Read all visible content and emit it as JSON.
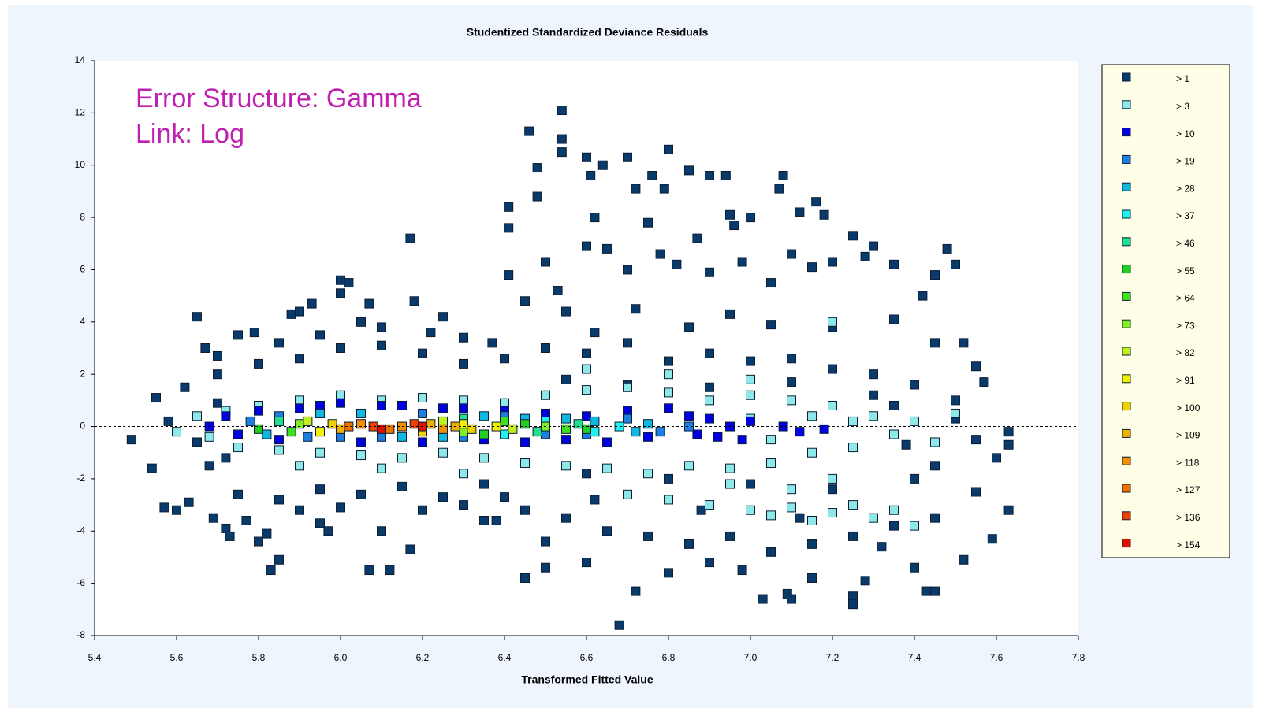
{
  "chart_data": {
    "type": "scatter",
    "title": "Studentized Standardized Deviance Residuals",
    "x_label": "Transformed Fitted Value",
    "annotations": [
      "Error Structure: Gamma",
      "Link: Log"
    ],
    "annotation_color": "#c020b0",
    "xlim": [
      5.4,
      7.8
    ],
    "ylim": [
      -8,
      14
    ],
    "xticks": [
      5.4,
      5.6,
      5.8,
      {
        "value": 6,
        "label": "6.0"
      },
      6.2,
      6.4,
      6.6,
      6.8,
      {
        "value": 7,
        "label": "7.0"
      },
      7.2,
      7.4,
      7.6,
      7.8
    ],
    "yticks": [
      -8,
      -6,
      -4,
      -2,
      0,
      2,
      4,
      6,
      8,
      10,
      12,
      14
    ],
    "hline": 0,
    "legend": "right",
    "series": [
      {
        "name": "> 1",
        "color": "#0a3a6a",
        "x": [
          5.49,
          5.54,
          5.55,
          5.57,
          5.6,
          5.63,
          5.65,
          5.67,
          5.69,
          5.7,
          5.72,
          5.73,
          5.75,
          5.77,
          5.79,
          5.8,
          5.82,
          5.83,
          5.85,
          5.88,
          5.9,
          5.93,
          5.95,
          5.97,
          6.0,
          6.02,
          6.0,
          6.05,
          6.07,
          6.1,
          6.07,
          6.12,
          6.17,
          6.17,
          6.18,
          6.25,
          6.35,
          6.38,
          6.41,
          6.41,
          6.41,
          6.46,
          6.48,
          6.48,
          6.54,
          6.54,
          6.54,
          6.6,
          6.61,
          6.64,
          6.62,
          6.7,
          6.72,
          6.76,
          6.8,
          6.79,
          6.85,
          6.9,
          6.94,
          6.95,
          6.96,
          7.0,
          7.08,
          7.07,
          7.12,
          7.16,
          7.18,
          7.25,
          7.3,
          7.48,
          7.5,
          7.45,
          7.55,
          7.57,
          7.6,
          7.63,
          7.63,
          7.63,
          7.59,
          6.68,
          6.72,
          7.03,
          7.09,
          7.1,
          7.25,
          7.25,
          7.43,
          7.45,
          6.5,
          6.45,
          6.6,
          6.8,
          6.9,
          6.98,
          7.15,
          7.28,
          7.4,
          7.52,
          6.5,
          6.53,
          6.6,
          6.65,
          6.7,
          6.75,
          6.78,
          6.82,
          6.87,
          6.9,
          6.98,
          7.05,
          7.1,
          7.15,
          7.2,
          7.28,
          7.35,
          7.42,
          6.45,
          6.55,
          6.62,
          6.72,
          6.85,
          6.95,
          7.05,
          7.2,
          7.35,
          7.45,
          7.52,
          5.62,
          5.68,
          5.7,
          5.75,
          5.8,
          5.85,
          5.9,
          5.95,
          6.0,
          6.05,
          6.1,
          6.15,
          6.2,
          6.25,
          6.3,
          6.35,
          6.4,
          6.45,
          6.5,
          6.55,
          6.6,
          6.65,
          6.7,
          6.75,
          6.8,
          6.85,
          6.9,
          6.95,
          7.0,
          7.05,
          7.1,
          7.15,
          7.2,
          7.25,
          7.3,
          7.35,
          7.4,
          7.45,
          7.5,
          7.55,
          7.55,
          7.5,
          7.45,
          5.58,
          5.65,
          5.7,
          5.72,
          6.55,
          6.6,
          6.7,
          6.8,
          6.9,
          7.0,
          7.1,
          7.2,
          7.3,
          7.4,
          7.35,
          7.38,
          6.62,
          6.88,
          7.12,
          7.32,
          6.5,
          6.4,
          6.3,
          6.2,
          6.0,
          5.9,
          5.85,
          5.95,
          6.1,
          6.22,
          6.3,
          6.37
        ],
        "y": [
          -0.5,
          -1.6,
          1.1,
          -3.1,
          -3.2,
          -2.9,
          4.2,
          3,
          -3.5,
          2.7,
          -3.9,
          -4.2,
          3.5,
          -3.6,
          3.6,
          -4.4,
          -4.1,
          -5.5,
          -5.1,
          4.3,
          4.4,
          4.7,
          -3.7,
          -4,
          5.6,
          5.5,
          5.1,
          4,
          4.7,
          -4,
          -5.5,
          -5.5,
          -4.7,
          7.2,
          4.8,
          4.2,
          -3.6,
          -3.6,
          8.4,
          7.6,
          5.8,
          11.3,
          9.9,
          8.8,
          12.1,
          11,
          10.5,
          10.3,
          9.6,
          10,
          8,
          10.3,
          9.1,
          9.6,
          10.6,
          9.1,
          9.8,
          9.6,
          9.6,
          8.1,
          7.7,
          8,
          9.6,
          9.1,
          8.2,
          8.6,
          8.1,
          7.3,
          6.9,
          6.8,
          6.2,
          5.8,
          2.3,
          1.7,
          -1.2,
          -0.2,
          -0.7,
          -3.2,
          -4.3,
          -7.6,
          -6.3,
          -6.6,
          -6.4,
          -6.6,
          -6.5,
          -6.8,
          -6.3,
          -6.3,
          -5.4,
          -5.8,
          -5.2,
          -5.6,
          -5.2,
          -5.5,
          -5.8,
          -5.9,
          -5.4,
          -5.1,
          6.3,
          5.2,
          6.9,
          6.8,
          6,
          7.8,
          6.6,
          6.2,
          7.2,
          5.9,
          6.3,
          5.5,
          6.6,
          6.1,
          6.3,
          6.5,
          6.2,
          5,
          4.8,
          4.4,
          3.6,
          4.5,
          3.8,
          4.3,
          3.9,
          3.8,
          4.1,
          3.2,
          3.2,
          1.5,
          -1.5,
          2,
          -2.6,
          2.4,
          -2.8,
          2.6,
          -2.4,
          3,
          -2.6,
          3.1,
          -2.3,
          2.8,
          -2.7,
          2.4,
          -2.2,
          2.6,
          -3.2,
          3,
          -3.5,
          2.8,
          -4,
          3.2,
          -4.2,
          2.5,
          -4.5,
          2.8,
          -4.2,
          2.5,
          -4.8,
          2.6,
          -4.5,
          2.2,
          -4.2,
          2,
          -3.8,
          1.6,
          -3.5,
          1,
          -2.5,
          -0.5,
          0.3,
          -1.5,
          0.2,
          -0.6,
          0.9,
          -1.2,
          1.8,
          -1.8,
          1.6,
          -2,
          1.5,
          -2.2,
          1.7,
          -2.4,
          1.2,
          -2,
          0.8,
          -0.7,
          -2.8,
          -3.2,
          -3.5,
          -4.6,
          -4.4,
          -2.7,
          -3,
          -3.2,
          -3.1,
          -3.2,
          3.2,
          3.5,
          3.8,
          3.6,
          3.4,
          3.2
        ]
      },
      {
        "name": "> 3",
        "color": "#8ee8e8",
        "x": [
          5.65,
          5.68,
          5.72,
          5.75,
          5.8,
          5.85,
          5.9,
          5.95,
          6.0,
          6.05,
          6.1,
          6.15,
          6.2,
          6.25,
          6.3,
          6.35,
          6.4,
          6.45,
          6.5,
          6.55,
          6.6,
          6.65,
          6.7,
          6.75,
          6.8,
          6.85,
          6.9,
          6.95,
          7.0,
          7.05,
          7.1,
          7.15,
          7.2,
          7.25,
          7.3,
          7.35,
          7.4,
          7.45,
          7.5,
          6.7,
          6.8,
          6.9,
          7.0,
          7.05,
          7.1,
          7.15,
          7.2,
          7.25,
          7.3,
          7.35,
          7.4,
          7.1,
          7.2,
          6.95,
          7.0,
          7.05,
          7.15,
          7.25,
          6.6,
          6.8,
          7.0,
          7.2,
          6.3,
          6.1,
          5.9,
          5.6
        ],
        "y": [
          0.4,
          -0.4,
          0.6,
          -0.8,
          0.8,
          -0.9,
          1,
          -1,
          1.2,
          -1.1,
          1,
          -1.2,
          1.1,
          -1,
          1,
          -1.2,
          0.9,
          -1.4,
          1.2,
          -1.5,
          1.4,
          -1.6,
          1.5,
          -1.8,
          1.3,
          -1.5,
          1,
          -1.6,
          1.2,
          -1.4,
          1,
          -1,
          0.8,
          -0.8,
          0.4,
          -0.3,
          0.2,
          -0.6,
          0.5,
          -2.6,
          -2.8,
          -3,
          -3.2,
          -3.4,
          -3.1,
          -3.6,
          -3.3,
          -3,
          -3.5,
          -3.2,
          -3.8,
          -2.4,
          -2,
          -2.2,
          0.3,
          -0.5,
          0.4,
          0.2,
          2.2,
          2,
          1.8,
          4,
          -1.8,
          -1.6,
          -1.5,
          -0.2
        ]
      },
      {
        "name": "> 10",
        "color": "#0000e0",
        "x": [
          5.68,
          5.72,
          5.75,
          5.8,
          5.85,
          5.9,
          5.95,
          6.0,
          6.05,
          6.1,
          6.15,
          6.2,
          6.25,
          6.3,
          6.35,
          6.4,
          6.45,
          6.5,
          6.55,
          6.6,
          6.65,
          6.7,
          6.75,
          6.8,
          6.85,
          6.87,
          6.9,
          6.92,
          6.95,
          6.98,
          7.0,
          7.08,
          7.12,
          7.18
        ],
        "y": [
          0,
          0.4,
          -0.3,
          0.6,
          -0.5,
          0.7,
          0.8,
          0.9,
          -0.6,
          0.8,
          0.8,
          -0.6,
          0.7,
          0.7,
          -0.5,
          0.6,
          -0.6,
          0.5,
          -0.5,
          0.4,
          -0.6,
          0.6,
          -0.4,
          0.7,
          0.4,
          -0.3,
          0.3,
          -0.4,
          0,
          -0.5,
          0.2,
          0,
          -0.2,
          -0.1
        ]
      },
      {
        "name": "> 19",
        "color": "#1e7fe0",
        "x": [
          5.78,
          5.85,
          5.92,
          6.0,
          6.1,
          6.2,
          6.3,
          6.4,
          6.5,
          6.6,
          6.7,
          6.78,
          6.85
        ],
        "y": [
          0.2,
          0.4,
          -0.4,
          -0.4,
          -0.4,
          0.5,
          -0.4,
          0.4,
          -0.3,
          -0.3,
          0.3,
          -0.2,
          0
        ]
      },
      {
        "name": "> 28",
        "color": "#10b8e0",
        "x": [
          5.82,
          5.95,
          6.05,
          6.15,
          6.25,
          6.35,
          6.45,
          6.55,
          6.62,
          6.72,
          6.75
        ],
        "y": [
          -0.3,
          0.5,
          0.5,
          -0.4,
          -0.4,
          0.4,
          0.3,
          0.3,
          0.2,
          -0.2,
          0.1
        ]
      },
      {
        "name": "> 37",
        "color": "#20f0f0",
        "x": [
          6.4,
          6.5,
          6.62,
          6.68
        ],
        "y": [
          -0.3,
          0.2,
          -0.2,
          0
        ]
      },
      {
        "name": "> 46",
        "color": "#20e090",
        "x": [
          5.85,
          6.3,
          6.48,
          6.58
        ],
        "y": [
          0.2,
          0.3,
          -0.2,
          0.1
        ]
      },
      {
        "name": "> 55",
        "color": "#20d020",
        "x": [
          5.8,
          6.35,
          6.45,
          6.6
        ],
        "y": [
          -0.1,
          -0.3,
          0.1,
          -0.1
        ]
      },
      {
        "name": "> 64",
        "color": "#40e020",
        "x": [
          5.88,
          6.4,
          6.55
        ],
        "y": [
          -0.2,
          0.2,
          -0.1
        ]
      },
      {
        "name": "> 73",
        "color": "#80f020",
        "x": [
          5.9,
          6.3,
          6.5
        ],
        "y": [
          0.1,
          -0.2,
          0
        ]
      },
      {
        "name": "> 82",
        "color": "#c0f020",
        "x": [
          5.92,
          6.25,
          6.42
        ],
        "y": [
          0.2,
          0.2,
          -0.1
        ]
      },
      {
        "name": "> 91",
        "color": "#f0f000",
        "x": [
          5.95,
          6.3,
          6.38
        ],
        "y": [
          -0.2,
          0.1,
          0
        ]
      },
      {
        "name": "> 100",
        "color": "#f0d000",
        "x": [
          5.98,
          6.2,
          6.32
        ],
        "y": [
          0.1,
          -0.2,
          -0.1
        ]
      },
      {
        "name": "> 109",
        "color": "#f0b000",
        "x": [
          6.0,
          6.28,
          6.22
        ],
        "y": [
          -0.1,
          0,
          0.1
        ]
      },
      {
        "name": "> 118",
        "color": "#f09000",
        "x": [
          6.05,
          6.15,
          6.25
        ],
        "y": [
          0.1,
          0,
          -0.1
        ]
      },
      {
        "name": "> 127",
        "color": "#f07000",
        "x": [
          6.02,
          6.12
        ],
        "y": [
          0,
          -0.1
        ]
      },
      {
        "name": "> 136",
        "color": "#f04000",
        "x": [
          6.08,
          6.18
        ],
        "y": [
          0,
          0.1
        ]
      },
      {
        "name": "> 154",
        "color": "#e01000",
        "x": [
          6.1,
          6.2
        ],
        "y": [
          -0.1,
          0
        ]
      }
    ]
  }
}
